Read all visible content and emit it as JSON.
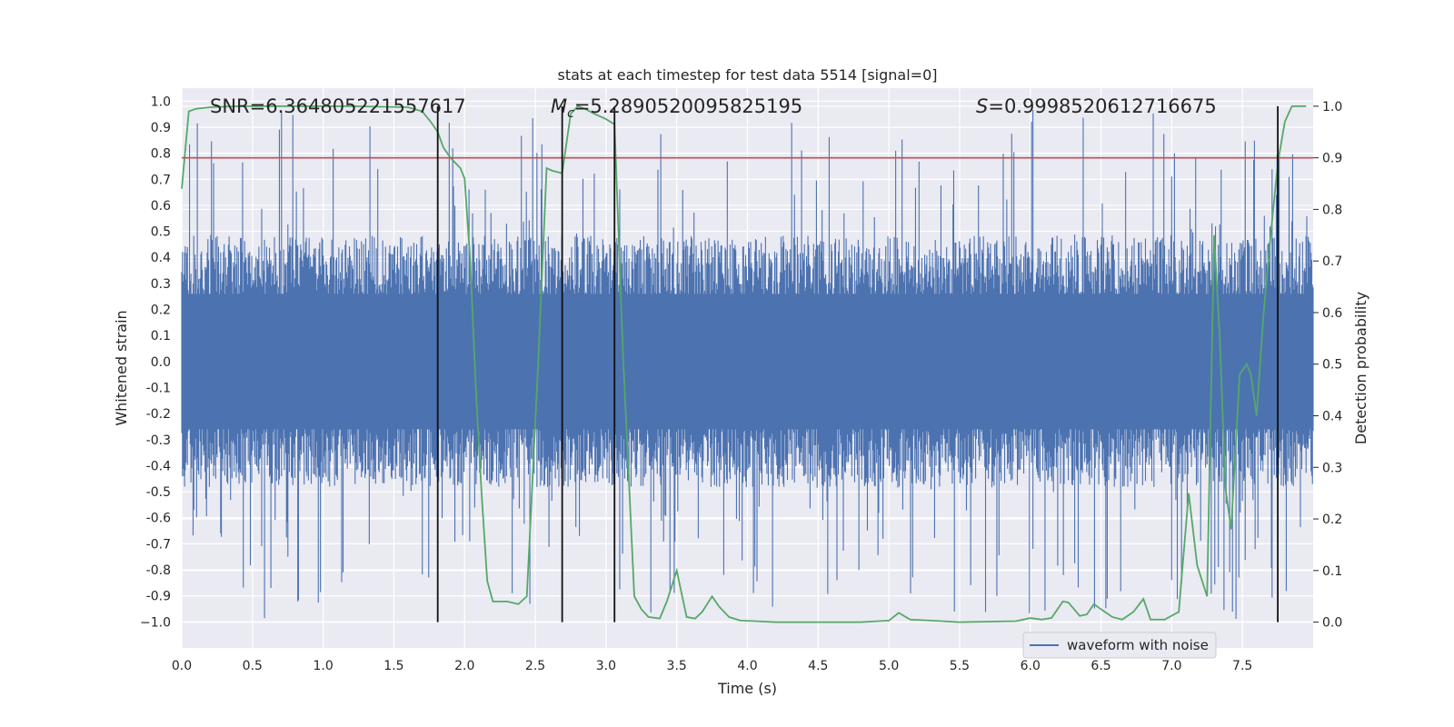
{
  "chart_data": {
    "type": "line",
    "title": "stats at each timestep for test data 5514 [signal=0]",
    "xlabel": "Time (s)",
    "ylabel": "Whitened strain",
    "y2label": "Detection probability",
    "xlim": [
      0,
      8
    ],
    "ylim": [
      -1.1,
      1.05
    ],
    "y2lim": [
      -0.05,
      1.035
    ],
    "x_ticks": [
      "0.0",
      "0.5",
      "1.0",
      "1.5",
      "2.0",
      "2.5",
      "3.0",
      "3.5",
      "4.0",
      "4.5",
      "5.0",
      "5.5",
      "6.0",
      "6.5",
      "7.0",
      "7.5"
    ],
    "x_tick_values": [
      0,
      0.5,
      1,
      1.5,
      2,
      2.5,
      3,
      3.5,
      4,
      4.5,
      5,
      5.5,
      6,
      6.5,
      7,
      7.5
    ],
    "y_ticks": [
      "1.0",
      "0.9",
      "0.8",
      "0.7",
      "0.6",
      "0.5",
      "0.4",
      "0.3",
      "0.2",
      "0.1",
      "0.0",
      "-0.1",
      "-0.2",
      "-0.3",
      "-0.4",
      "-0.5",
      "-0.6",
      "-0.7",
      "-0.8",
      "-0.9",
      "−1.0"
    ],
    "y_tick_values": [
      1.0,
      0.9,
      0.8,
      0.7,
      0.6,
      0.5,
      0.4,
      0.3,
      0.2,
      0.1,
      0.0,
      -0.1,
      -0.2,
      -0.3,
      -0.4,
      -0.5,
      -0.6,
      -0.7,
      -0.8,
      -0.9,
      -1.0
    ],
    "y2_ticks": [
      "1.0",
      "0.9",
      "0.8",
      "0.7",
      "0.6",
      "0.5",
      "0.4",
      "0.3",
      "0.2",
      "0.1",
      "0.0"
    ],
    "y2_tick_values": [
      1.0,
      0.9,
      0.8,
      0.7,
      0.6,
      0.5,
      0.4,
      0.3,
      0.2,
      0.1,
      0.0
    ],
    "grid": true,
    "legend": {
      "position": "lower-right",
      "entries": [
        "waveform with noise"
      ]
    },
    "annotations": {
      "snr": "SNR=6.364805221557617",
      "mc_symbol": "M",
      "mc_sub": "c",
      "mc_value": "=5.2890520095825195",
      "s_symbol": "S",
      "s_value": "=0.9998520612716675"
    },
    "threshold": {
      "axis": "y2",
      "value": 0.9
    },
    "vertical_markers": [
      1.81,
      2.69,
      3.06,
      7.75
    ],
    "series": [
      {
        "name": "waveform with noise",
        "axis": "y",
        "x_range": [
          0,
          8
        ],
        "envelope_samples": 1600,
        "typical_amplitude": 0.42,
        "max_amplitude": 0.97,
        "min_amplitude": -1.0
      },
      {
        "axis": "y2",
        "x": [
          0.0,
          0.05,
          0.1,
          0.2,
          0.4,
          0.8,
          1.2,
          1.6,
          1.7,
          1.76,
          1.81,
          1.85,
          1.9,
          1.97,
          2.0,
          2.04,
          2.08,
          2.12,
          2.16,
          2.2,
          2.3,
          2.38,
          2.44,
          2.52,
          2.58,
          2.62,
          2.69,
          2.75,
          2.8,
          2.85,
          2.92,
          3.0,
          3.06,
          3.12,
          3.2,
          3.25,
          3.3,
          3.38,
          3.43,
          3.5,
          3.57,
          3.63,
          3.68,
          3.75,
          3.8,
          3.87,
          3.95,
          4.05,
          4.2,
          4.5,
          4.8,
          5.0,
          5.07,
          5.15,
          5.3,
          5.5,
          5.9,
          6.0,
          6.08,
          6.15,
          6.23,
          6.27,
          6.35,
          6.4,
          6.45,
          6.5,
          6.58,
          6.65,
          6.73,
          6.8,
          6.85,
          6.95,
          7.05,
          7.12,
          7.18,
          7.25,
          7.3,
          7.34,
          7.38,
          7.42,
          7.48,
          7.53,
          7.56,
          7.6,
          7.65,
          7.7,
          7.75,
          7.8,
          7.85,
          7.9,
          7.95
        ],
        "y": [
          0.84,
          0.99,
          0.995,
          0.998,
          1.0,
          1.0,
          1.0,
          0.998,
          0.99,
          0.97,
          0.95,
          0.92,
          0.9,
          0.88,
          0.86,
          0.7,
          0.45,
          0.25,
          0.08,
          0.04,
          0.04,
          0.035,
          0.05,
          0.5,
          0.88,
          0.875,
          0.87,
          0.985,
          1.0,
          0.995,
          0.985,
          0.975,
          0.965,
          0.52,
          0.05,
          0.025,
          0.01,
          0.007,
          0.04,
          0.1,
          0.01,
          0.007,
          0.02,
          0.05,
          0.03,
          0.01,
          0.003,
          0.002,
          0.0,
          0.0,
          0.0,
          0.003,
          0.018,
          0.005,
          0.003,
          0.0,
          0.002,
          0.008,
          0.005,
          0.008,
          0.04,
          0.038,
          0.012,
          0.015,
          0.035,
          0.025,
          0.01,
          0.005,
          0.02,
          0.045,
          0.005,
          0.005,
          0.02,
          0.25,
          0.11,
          0.05,
          0.75,
          0.55,
          0.26,
          0.18,
          0.48,
          0.5,
          0.48,
          0.4,
          0.6,
          0.75,
          0.89,
          0.97,
          1.0,
          1.0,
          1.0
        ]
      }
    ]
  }
}
